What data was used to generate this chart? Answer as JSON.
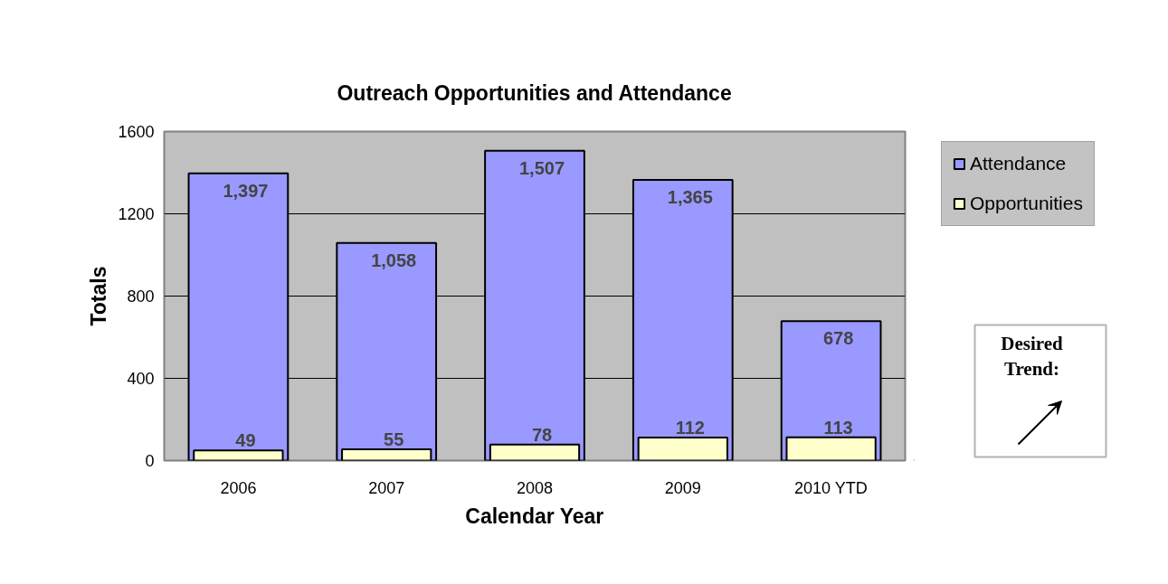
{
  "chart_data": {
    "type": "bar",
    "title": "Outreach Opportunities and Attendance",
    "xlabel": "Calendar Year",
    "ylabel": "Totals",
    "categories": [
      "2006",
      "2007",
      "2008",
      "2009",
      "2010 YTD"
    ],
    "series": [
      {
        "name": "Attendance",
        "color": "#9999ff",
        "values": [
          1397,
          1058,
          1507,
          1365,
          678
        ],
        "value_labels": [
          "1,397",
          "1,058",
          "1,507",
          "1,365",
          "678"
        ]
      },
      {
        "name": "Opportunities",
        "color": "#ffffcc",
        "values": [
          49,
          55,
          78,
          112,
          113
        ],
        "value_labels": [
          "49",
          "55",
          "78",
          "112",
          "113"
        ]
      }
    ],
    "ylim": [
      0,
      1600
    ],
    "yticks": [
      0,
      400,
      800,
      1200,
      1600
    ],
    "grid": "y",
    "legend": "top right",
    "annotations": [
      "Desired Trend:"
    ]
  }
}
